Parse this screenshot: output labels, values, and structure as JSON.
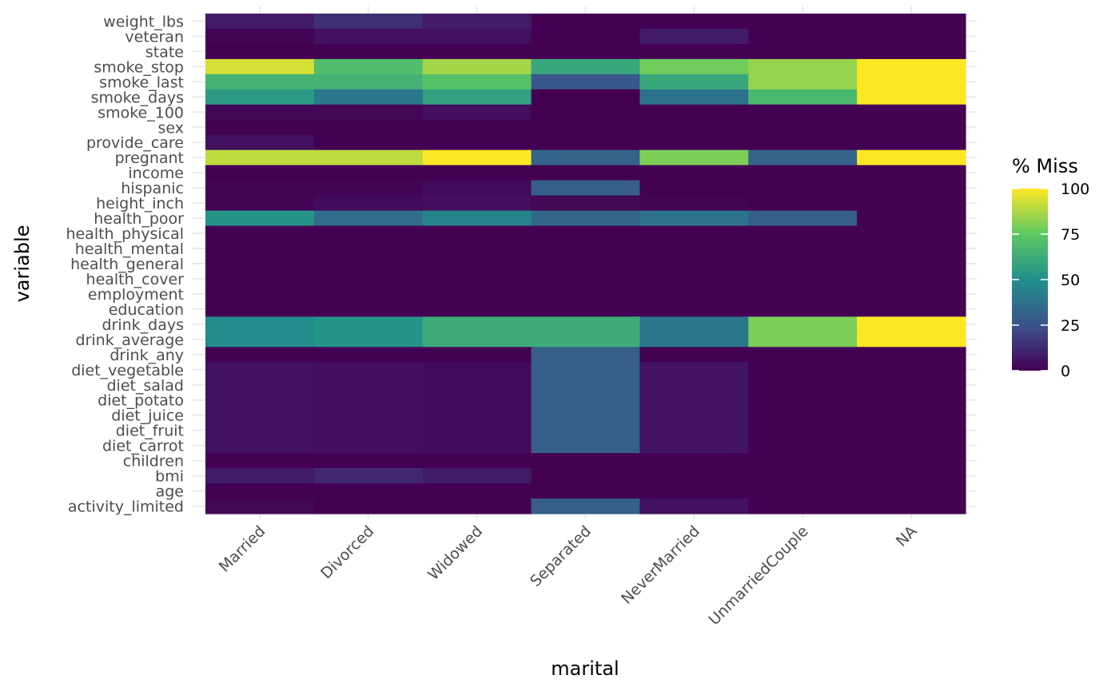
{
  "chart_data": {
    "type": "heatmap",
    "xlabel": "marital",
    "ylabel": "variable",
    "x_categories": [
      "Married",
      "Divorced",
      "Widowed",
      "Separated",
      "NeverMarried",
      "UnmarriedCouple",
      "NA"
    ],
    "y_categories": [
      "weight_lbs",
      "veteran",
      "state",
      "smoke_stop",
      "smoke_last",
      "smoke_days",
      "smoke_100",
      "sex",
      "provide_care",
      "pregnant",
      "income",
      "hispanic",
      "height_inch",
      "health_poor",
      "health_physical",
      "health_mental",
      "health_general",
      "health_cover",
      "employment",
      "education",
      "drink_days",
      "drink_average",
      "drink_any",
      "diet_vegetable",
      "diet_salad",
      "diet_potato",
      "diet_juice",
      "diet_fruit",
      "diet_carrot",
      "children",
      "bmi",
      "age",
      "activity_limited"
    ],
    "values": [
      [
        8,
        14,
        8,
        0,
        0,
        0,
        0
      ],
      [
        1,
        5,
        5,
        0,
        8,
        0,
        0
      ],
      [
        0,
        0,
        0,
        0,
        0,
        0,
        0
      ],
      [
        94,
        70,
        86,
        60,
        78,
        84,
        100
      ],
      [
        65,
        65,
        72,
        27,
        60,
        84,
        100
      ],
      [
        55,
        40,
        57,
        0,
        38,
        67,
        100
      ],
      [
        2,
        2,
        4,
        0,
        0,
        0,
        0
      ],
      [
        0,
        0,
        0,
        0,
        0,
        0,
        0
      ],
      [
        5,
        0,
        0,
        0,
        0,
        0,
        0
      ],
      [
        90,
        90,
        100,
        32,
        80,
        32,
        100
      ],
      [
        0,
        0,
        0,
        0,
        0,
        0,
        0
      ],
      [
        1,
        1,
        3,
        30,
        0,
        0,
        0
      ],
      [
        1,
        3,
        4,
        2,
        1,
        0,
        0
      ],
      [
        52,
        35,
        45,
        33,
        38,
        30,
        0
      ],
      [
        0,
        0,
        0,
        0,
        0,
        0,
        0
      ],
      [
        0,
        0,
        0,
        0,
        0,
        0,
        0
      ],
      [
        0,
        0,
        0,
        0,
        0,
        0,
        0
      ],
      [
        0,
        0,
        0,
        0,
        0,
        0,
        0
      ],
      [
        0,
        0,
        0,
        0,
        0,
        0,
        0
      ],
      [
        0,
        0,
        0,
        0,
        0,
        0,
        0
      ],
      [
        48,
        52,
        62,
        62,
        40,
        80,
        100
      ],
      [
        48,
        52,
        62,
        62,
        40,
        80,
        100
      ],
      [
        0,
        0,
        0,
        30,
        0,
        0,
        0
      ],
      [
        5,
        4,
        3,
        30,
        6,
        0,
        0
      ],
      [
        5,
        4,
        3,
        30,
        6,
        0,
        0
      ],
      [
        5,
        4,
        3,
        30,
        6,
        0,
        0
      ],
      [
        5,
        4,
        3,
        30,
        6,
        0,
        0
      ],
      [
        5,
        4,
        3,
        30,
        6,
        0,
        0
      ],
      [
        5,
        4,
        3,
        30,
        6,
        0,
        0
      ],
      [
        0,
        0,
        0,
        0,
        0,
        0,
        0
      ],
      [
        8,
        12,
        8,
        0,
        0,
        0,
        0
      ],
      [
        0,
        0,
        0,
        0,
        0,
        0,
        0
      ],
      [
        2,
        0,
        0,
        30,
        5,
        0,
        0
      ]
    ],
    "legend": {
      "title": "% Miss",
      "range": [
        0,
        100
      ],
      "ticks": [
        0,
        25,
        50,
        75,
        100
      ],
      "tick_labels": [
        "0",
        "25",
        "50",
        "75",
        "100"
      ],
      "palette": "viridis",
      "placement": "right"
    },
    "grid": true
  },
  "colors": {
    "background": "#ffffff",
    "grid": "#ebebeb",
    "tick_text": "#4d4d4d",
    "title_text": "#000000",
    "viridis_stops": [
      "#440154",
      "#3b528b",
      "#21908c",
      "#5dc963",
      "#fde725"
    ]
  }
}
